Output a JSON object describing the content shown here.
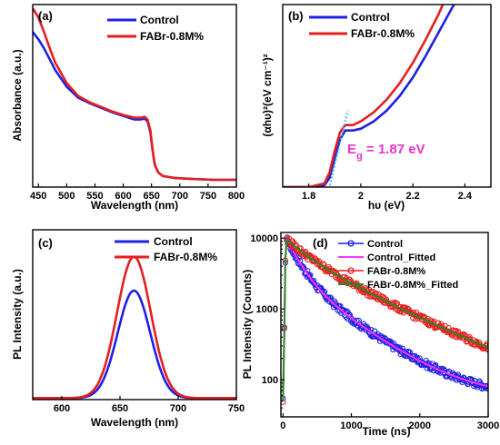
{
  "colors": {
    "control": "#1f1fe6",
    "fabr": "#e61e1e",
    "control_fitted": "#ff33ff",
    "fabr_fitted": "#228b22",
    "tangent": "#33c3e8",
    "eg_text": "#e633cc"
  },
  "chart_data": [
    {
      "type": "line",
      "panel_label": "(a)",
      "xlabel": "Wavelength (nm)",
      "ylabel": "Absorbance (a.u.)",
      "xlim": [
        440,
        800
      ],
      "ylim": [
        0,
        1
      ],
      "xticks": [
        450,
        500,
        550,
        600,
        650,
        700,
        750,
        800
      ],
      "yticks": [],
      "legend_position": "top-right",
      "series": [
        {
          "name": "Control",
          "color_key": "control",
          "x": [
            440,
            450,
            460,
            470,
            480,
            500,
            520,
            540,
            560,
            580,
            600,
            620,
            630,
            638,
            643,
            648,
            652,
            656,
            662,
            670,
            690,
            720,
            760,
            800
          ],
          "y": [
            0.85,
            0.81,
            0.76,
            0.7,
            0.64,
            0.55,
            0.49,
            0.46,
            0.435,
            0.41,
            0.39,
            0.37,
            0.37,
            0.375,
            0.36,
            0.3,
            0.2,
            0.12,
            0.08,
            0.06,
            0.05,
            0.045,
            0.04,
            0.04
          ]
        },
        {
          "name": "FABr-0.8M%",
          "color_key": "fabr",
          "x": [
            440,
            450,
            460,
            470,
            480,
            500,
            520,
            540,
            560,
            580,
            600,
            620,
            630,
            638,
            643,
            648,
            652,
            656,
            662,
            670,
            690,
            720,
            760,
            800
          ],
          "y": [
            0.98,
            0.93,
            0.85,
            0.76,
            0.68,
            0.57,
            0.5,
            0.465,
            0.44,
            0.415,
            0.395,
            0.38,
            0.38,
            0.385,
            0.37,
            0.31,
            0.2,
            0.12,
            0.08,
            0.06,
            0.05,
            0.045,
            0.04,
            0.04
          ]
        }
      ]
    },
    {
      "type": "line",
      "panel_label": "(b)",
      "xlabel": "hυ (eV)",
      "ylabel": "(αhυ)²(eV cm⁻¹)²",
      "xlim": [
        1.7,
        2.5
      ],
      "ylim": [
        0,
        1
      ],
      "xticks": [
        1.8,
        2.0,
        2.2,
        2.4
      ],
      "yticks": [],
      "annotation": "Eg = 1.87 eV",
      "legend_position": "top-right",
      "series": [
        {
          "name": "Control",
          "color_key": "control",
          "x": [
            1.7,
            1.8,
            1.86,
            1.88,
            1.9,
            1.92,
            1.94,
            1.97,
            2.0,
            2.05,
            2.1,
            2.15,
            2.2,
            2.25,
            2.3,
            2.35,
            2.38
          ],
          "y": [
            0.0,
            0.0,
            0.01,
            0.05,
            0.16,
            0.26,
            0.31,
            0.31,
            0.32,
            0.36,
            0.42,
            0.5,
            0.6,
            0.72,
            0.85,
            0.98,
            1.05
          ]
        },
        {
          "name": "FABr-0.8M%",
          "color_key": "fabr",
          "x": [
            1.7,
            1.8,
            1.86,
            1.88,
            1.9,
            1.92,
            1.94,
            1.97,
            2.0,
            2.05,
            2.1,
            2.15,
            2.2,
            2.25,
            2.3,
            2.33
          ],
          "y": [
            0.0,
            0.0,
            0.02,
            0.08,
            0.2,
            0.3,
            0.34,
            0.34,
            0.36,
            0.41,
            0.48,
            0.57,
            0.68,
            0.81,
            0.95,
            1.05
          ]
        },
        {
          "name": "",
          "color_key": "tangent",
          "style": "dotted",
          "x": [
            1.875,
            1.95
          ],
          "y": [
            -0.03,
            0.42
          ]
        }
      ]
    },
    {
      "type": "line",
      "panel_label": "(c)",
      "xlabel": "Wavelength (nm)",
      "ylabel": "PL Intensity (a.u.)",
      "xlim": [
        575,
        750
      ],
      "ylim": [
        0,
        1.2
      ],
      "xticks": [
        600,
        650,
        700,
        750
      ],
      "yticks": [],
      "legend_position": "top-right",
      "series": [
        {
          "name": "Control",
          "color_key": "control",
          "gaussian": {
            "center": 662,
            "sigma": 14,
            "amplitude": 0.76,
            "base": 0.01
          }
        },
        {
          "name": "FABr-0.8M%",
          "color_key": "fabr",
          "gaussian": {
            "center": 662,
            "sigma": 14.5,
            "amplitude": 1.0,
            "base": 0.01
          }
        }
      ]
    },
    {
      "type": "scatter",
      "panel_label": "(d)",
      "xlabel": "Time (ns)",
      "ylabel": "PL Intensity (Counts)",
      "xlim": [
        -30,
        3000
      ],
      "ylim": [
        30,
        12000
      ],
      "yscale": "log",
      "xticks": [
        0,
        1000,
        2000,
        3000
      ],
      "yticks": [
        100,
        1000,
        10000
      ],
      "legend_position": "top-right",
      "series": [
        {
          "name": "Control",
          "color_key": "control",
          "style": "markers",
          "biexp": {
            "a1": 6500,
            "t1": 180,
            "a2": 3000,
            "t2": 620,
            "base": 55
          },
          "noise": 0.12
        },
        {
          "name": "Control_Fitted",
          "color_key": "control_fitted",
          "style": "line",
          "biexp": {
            "a1": 6500,
            "t1": 180,
            "a2": 3000,
            "t2": 620,
            "base": 55
          }
        },
        {
          "name": "FABr-0.8M%",
          "color_key": "fabr",
          "style": "markers",
          "biexp": {
            "a1": 3500,
            "t1": 300,
            "a2": 6000,
            "t2": 900,
            "base": 60
          },
          "noise": 0.12
        },
        {
          "name": "FABr-0.8M%_Fitted",
          "color_key": "fabr_fitted",
          "style": "line",
          "biexp": {
            "a1": 3500,
            "t1": 300,
            "a2": 6000,
            "t2": 900,
            "base": 60
          }
        }
      ]
    }
  ]
}
